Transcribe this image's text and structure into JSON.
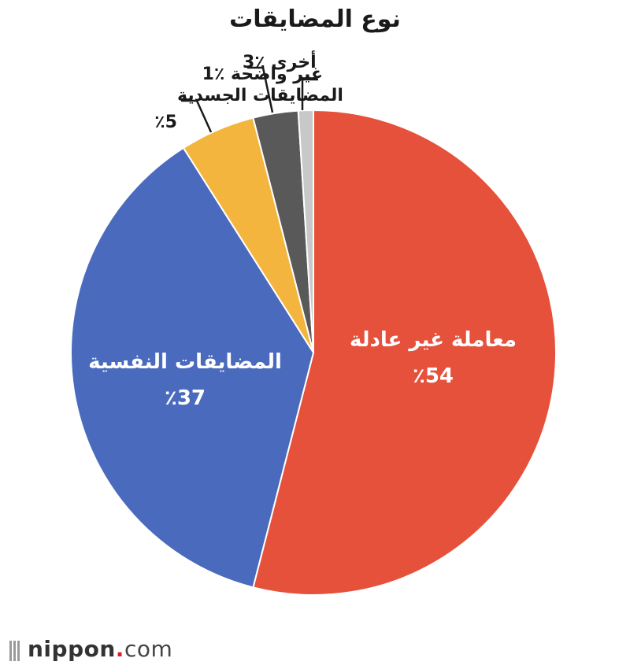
{
  "chart_data": {
    "type": "pie",
    "title": "نوع المضايقات",
    "slices": [
      {
        "label": "معاملة غير عادلة",
        "value": 54,
        "value_label": "٪54",
        "color": "#e5513b",
        "label_position": "inside"
      },
      {
        "label": "المضايقات النفسية",
        "value": 37,
        "value_label": "٪37",
        "color": "#4a6bbd",
        "label_position": "inside"
      },
      {
        "label": "المضايقات الجسدية",
        "value": 5,
        "value_label": "٪5",
        "color": "#f4b53f",
        "label_position": "outside"
      },
      {
        "label": "أخرى",
        "value": 3,
        "value_label": "٪3",
        "color": "#595959",
        "label_position": "outside"
      },
      {
        "label": "غير واضحة",
        "value": 1,
        "value_label": "٪1",
        "color": "#c8c8c8",
        "label_position": "outside"
      }
    ],
    "start": "top",
    "direction": "clockwise",
    "legend": "none"
  },
  "footer": {
    "brand_name": "nippon",
    "brand_dot": ".",
    "brand_tld": "com"
  }
}
